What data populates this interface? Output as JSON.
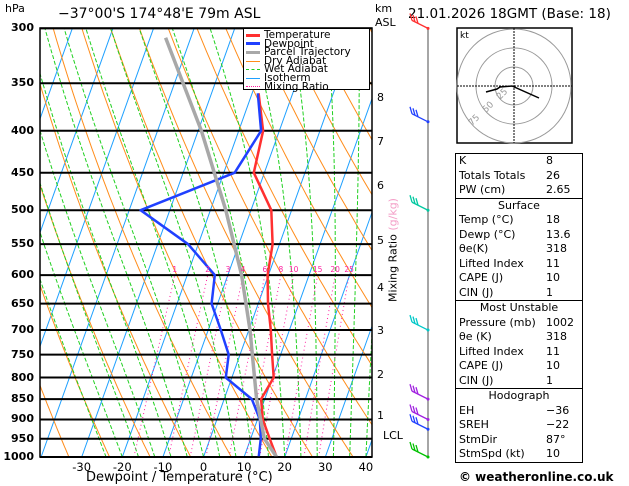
{
  "header": {
    "pressure_unit": "hPa",
    "location": "−37°00'S  174°48'E  79m  ASL",
    "height_unit_line1": "km",
    "height_unit_line2": "ASL",
    "datetime": "21.01.2026  18GMT  (Base: 18)"
  },
  "legend": {
    "items": [
      {
        "label": "Temperature",
        "color": "#ff3030",
        "style": "thick"
      },
      {
        "label": "Dewpoint",
        "color": "#2040ff",
        "style": "thick"
      },
      {
        "label": "Parcel Trajectory",
        "color": "#a8a8a8",
        "style": "thick"
      },
      {
        "label": "Dry Adiabat",
        "color": "#ff8c1a",
        "style": "thin"
      },
      {
        "label": "Wet Adiabat",
        "color": "#20d020",
        "style": "dashed"
      },
      {
        "label": "Isotherm",
        "color": "#1ea0ff",
        "style": "thin"
      },
      {
        "label": "Mixing Ratio",
        "color": "#ff1ea0",
        "style": "dotted"
      }
    ]
  },
  "chart_data": {
    "type": "line",
    "xlabel": "Dewpoint / Temperature (°C)",
    "ylabel": "hPa",
    "y_scale": "log",
    "ylim": [
      1000,
      300
    ],
    "xlim": [
      -40,
      40
    ],
    "x_ticks": [
      -30,
      -20,
      -10,
      0,
      10,
      20,
      30,
      40
    ],
    "pressure_ticks": [
      300,
      350,
      400,
      450,
      500,
      550,
      600,
      650,
      700,
      750,
      800,
      850,
      900,
      950,
      1000
    ],
    "height_ticks_km": [
      {
        "label": "8",
        "pressure": 365
      },
      {
        "label": "7",
        "pressure": 413
      },
      {
        "label": "6",
        "pressure": 467
      },
      {
        "label": "5",
        "pressure": 545
      },
      {
        "label": "4",
        "pressure": 622
      },
      {
        "label": "3",
        "pressure": 702
      },
      {
        "label": "2",
        "pressure": 795
      },
      {
        "label": "1",
        "pressure": 892
      },
      {
        "label": "LCL",
        "pressure": 943
      }
    ],
    "mixing_ratio_axis_label": "Mixing Ratio",
    "mixing_ratio_axis_unit": "(g/kg)",
    "mixing_ratio_lines": [
      1,
      2,
      3,
      4,
      6,
      8,
      10,
      15,
      20,
      25
    ],
    "series": [
      {
        "name": "Temperature",
        "color": "#ff3030",
        "pressure": [
          1000,
          950,
          900,
          850,
          800,
          750,
          700,
          650,
          600,
          550,
          500,
          450,
          400,
          360
        ],
        "values": [
          18,
          14.7,
          11.3,
          9.1,
          10.3,
          7.9,
          5.4,
          2.4,
          -0.2,
          -1.7,
          -5,
          -12.6,
          -14,
          -18.4
        ]
      },
      {
        "name": "Dewpoint",
        "color": "#2040ff",
        "pressure": [
          1000,
          950,
          900,
          850,
          800,
          750,
          700,
          650,
          600,
          550,
          500,
          450,
          400,
          360
        ],
        "values": [
          13.6,
          12.5,
          10.6,
          6.8,
          -1.5,
          -2.8,
          -6.9,
          -11.5,
          -13.2,
          -22.5,
          -37.2,
          -17.3,
          -14.5,
          -18.6
        ]
      },
      {
        "name": "Parcel Trajectory",
        "color": "#a8a8a8",
        "pressure": [
          1000,
          950,
          850,
          700,
          600,
          500,
          400,
          308
        ],
        "values": [
          18,
          13.4,
          8,
          0.3,
          -6.6,
          -16.2,
          -29.2,
          -46.2
        ]
      }
    ],
    "wind_barbs": [
      {
        "pressure": 300,
        "color": "#ff3030"
      },
      {
        "pressure": 390,
        "color": "#2040ff"
      },
      {
        "pressure": 500,
        "color": "#00c8a0"
      },
      {
        "pressure": 700,
        "color": "#00c8c8"
      },
      {
        "pressure": 850,
        "color": "#a020e0"
      },
      {
        "pressure": 900,
        "color": "#a020e0"
      },
      {
        "pressure": 925,
        "color": "#2040ff"
      },
      {
        "pressure": 1000,
        "color": "#00c000"
      }
    ]
  },
  "hodograph": {
    "unit": "kt",
    "ring_labels": [
      "25",
      "50",
      "75"
    ]
  },
  "stats": {
    "indices": [
      {
        "label": "K",
        "value": "8"
      },
      {
        "label": "Totals Totals",
        "value": "26"
      },
      {
        "label": "PW (cm)",
        "value": "2.65"
      }
    ],
    "surface": {
      "title": "Surface",
      "rows": [
        {
          "label": "Temp (°C)",
          "value": "18"
        },
        {
          "label": "Dewp (°C)",
          "value": "13.6"
        },
        {
          "label": "θe(K)",
          "value": "318"
        },
        {
          "label": "Lifted Index",
          "value": "11"
        },
        {
          "label": "CAPE (J)",
          "value": "10"
        },
        {
          "label": "CIN (J)",
          "value": "1"
        }
      ]
    },
    "most_unstable": {
      "title": "Most Unstable",
      "rows": [
        {
          "label": "Pressure (mb)",
          "value": "1002"
        },
        {
          "label": "θe (K)",
          "value": "318"
        },
        {
          "label": "Lifted Index",
          "value": "11"
        },
        {
          "label": "CAPE (J)",
          "value": "10"
        },
        {
          "label": "CIN (J)",
          "value": "1"
        }
      ]
    },
    "hodograph": {
      "title": "Hodograph",
      "rows": [
        {
          "label": "EH",
          "value": "−36"
        },
        {
          "label": "SREH",
          "value": "−22"
        },
        {
          "label": "StmDir",
          "value": "87°"
        },
        {
          "label": "StmSpd (kt)",
          "value": "10"
        }
      ]
    }
  },
  "footer": {
    "copyright": "© weatheronline.co.uk"
  }
}
